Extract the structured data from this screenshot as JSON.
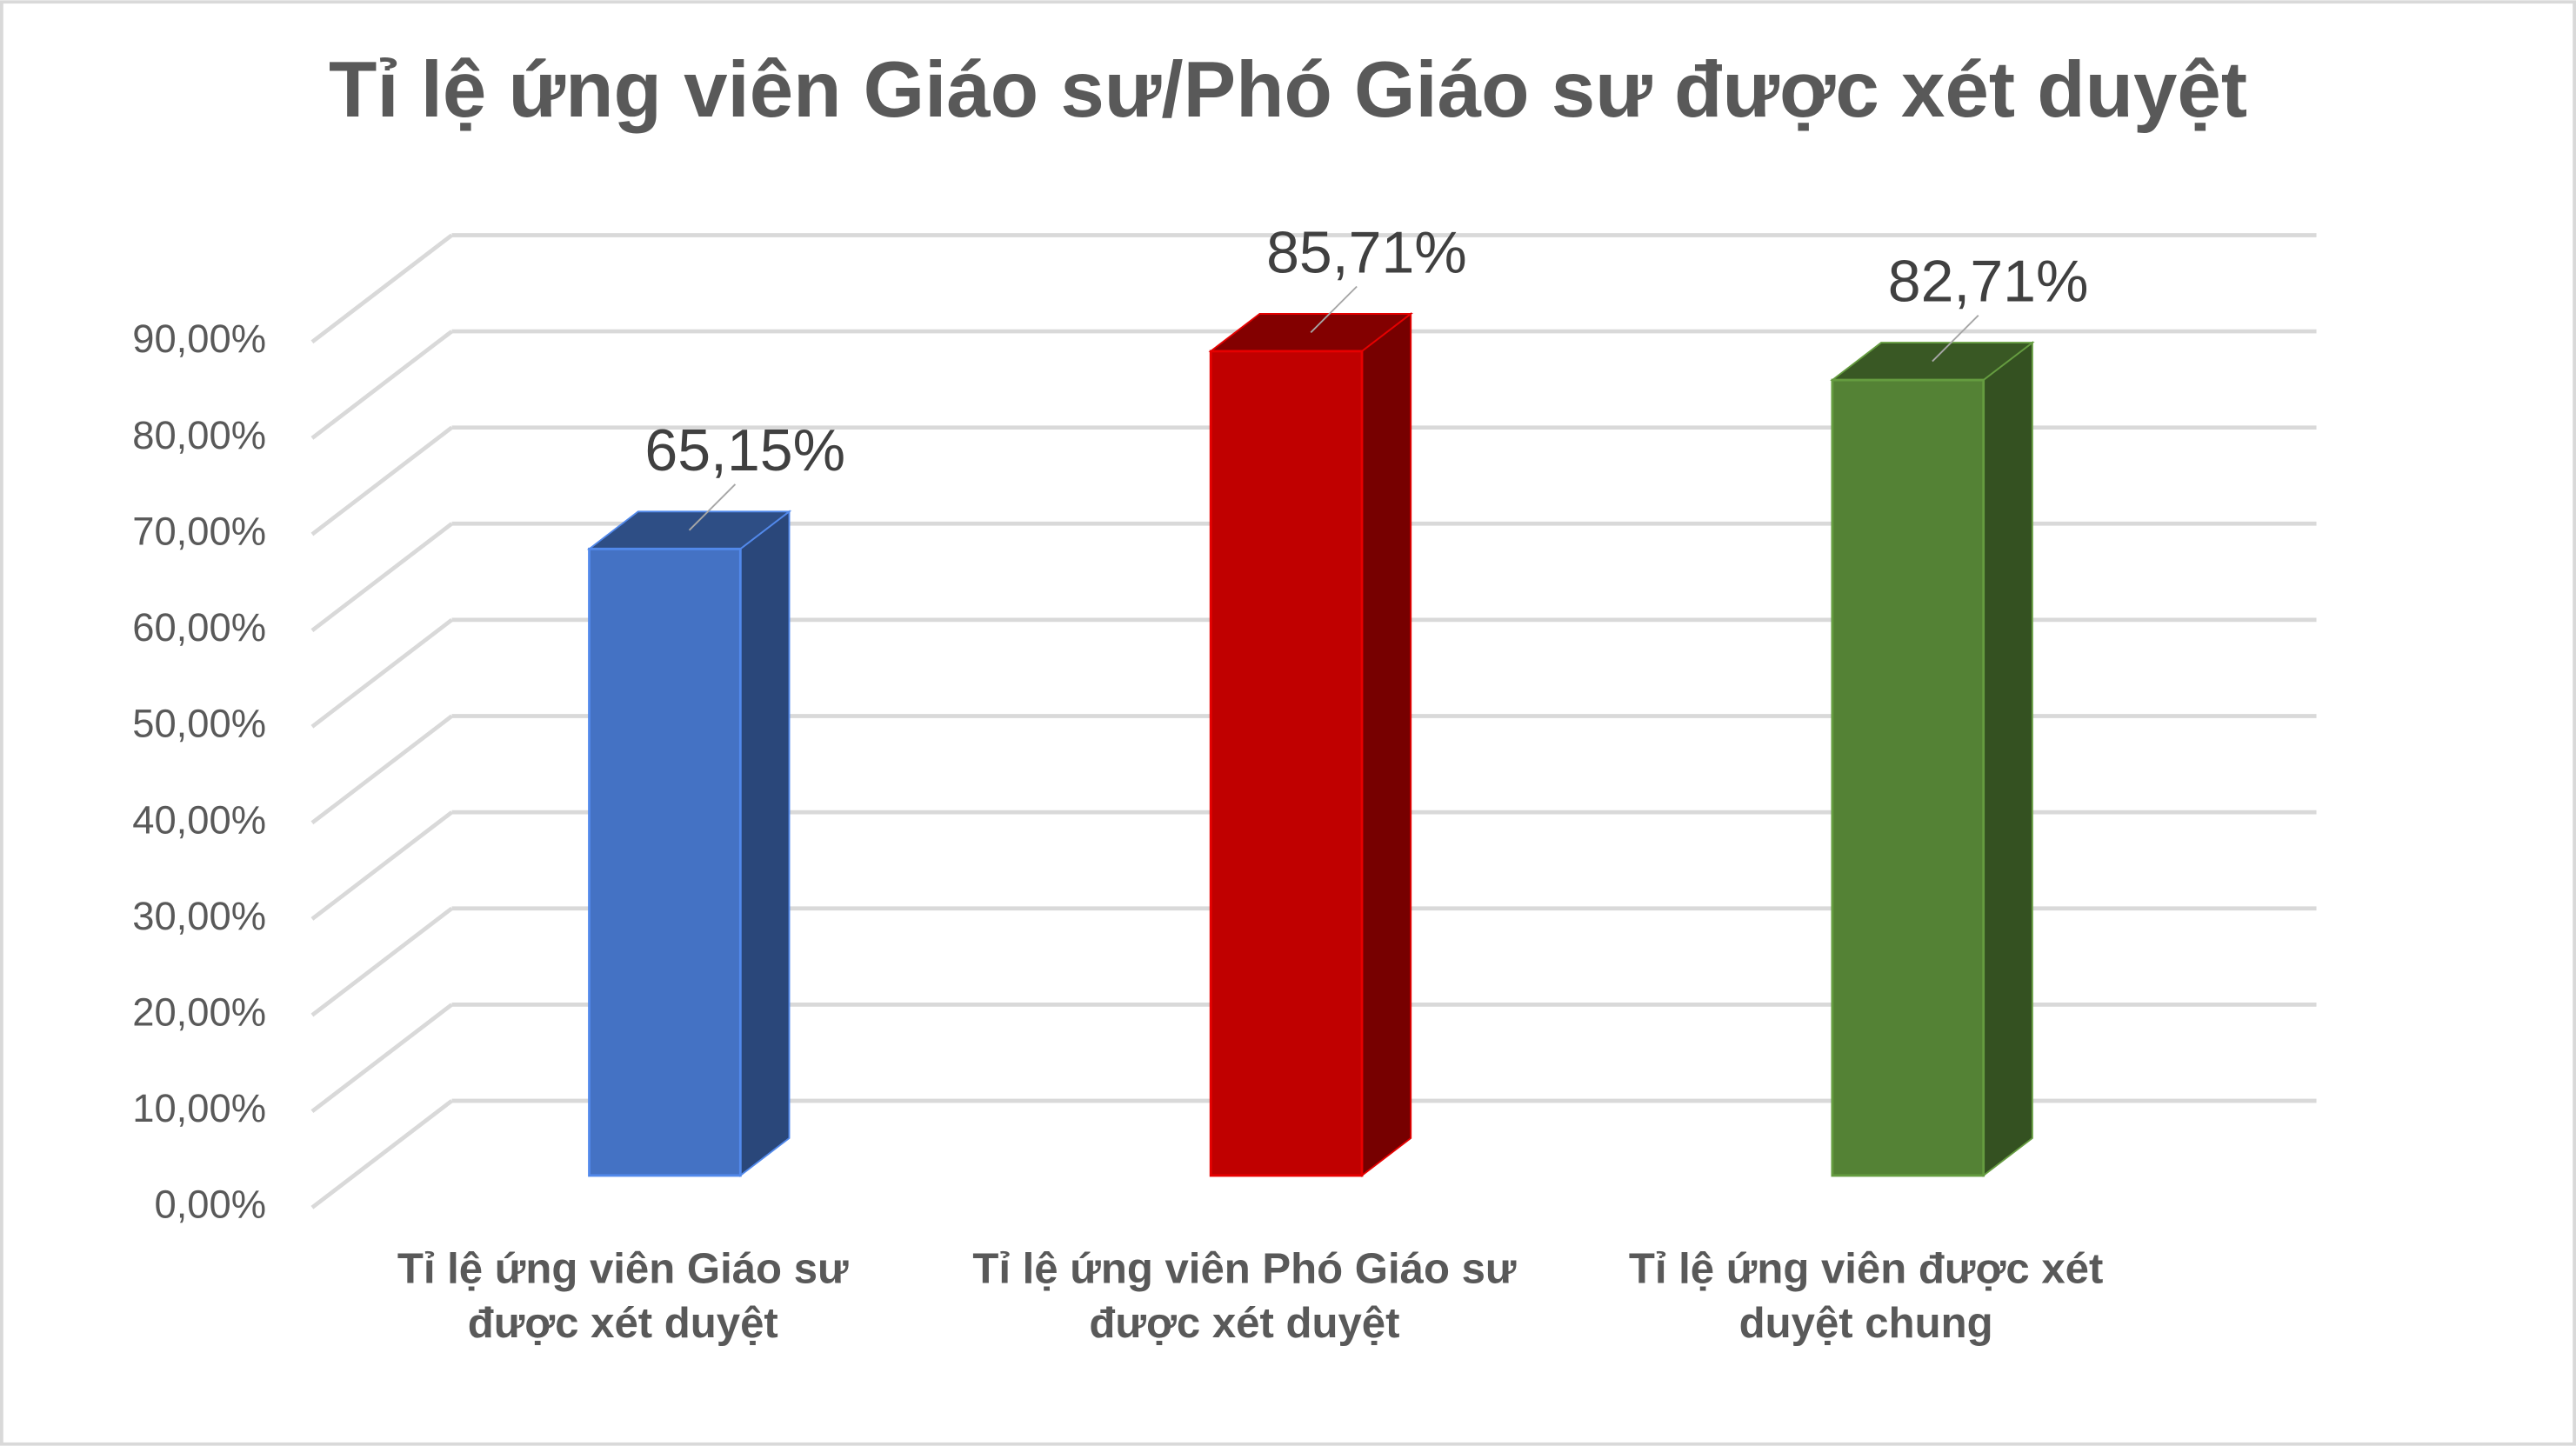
{
  "chart_data": {
    "type": "bar3d",
    "title": "Tỉ lệ ứng viên Giáo sư/Phó Giáo sư được xét duyệt",
    "categories": [
      "Tỉ lệ ứng viên Giáo sư được xét duyệt",
      "Tỉ lệ ứng viên Phó Giáo sư được xét duyệt",
      "Tỉ lệ ứng viên được xét duyệt chung"
    ],
    "values": [
      65.15,
      85.71,
      82.71
    ],
    "value_labels": [
      "65,15%",
      "85,71%",
      "82,71%"
    ],
    "colors": [
      "#4472c4",
      "#c00000",
      "#548235"
    ],
    "ylim": [
      0,
      90
    ],
    "yticks": [
      {
        "value": 0,
        "label": "0,00%"
      },
      {
        "value": 10,
        "label": "10,00%"
      },
      {
        "value": 20,
        "label": "20,00%"
      },
      {
        "value": 30,
        "label": "30,00%"
      },
      {
        "value": 40,
        "label": "40,00%"
      },
      {
        "value": 50,
        "label": "50,00%"
      },
      {
        "value": 60,
        "label": "60,00%"
      },
      {
        "value": 70,
        "label": "70,00%"
      },
      {
        "value": 80,
        "label": "80,00%"
      },
      {
        "value": 90,
        "label": "90,00%"
      }
    ],
    "grid": true
  }
}
